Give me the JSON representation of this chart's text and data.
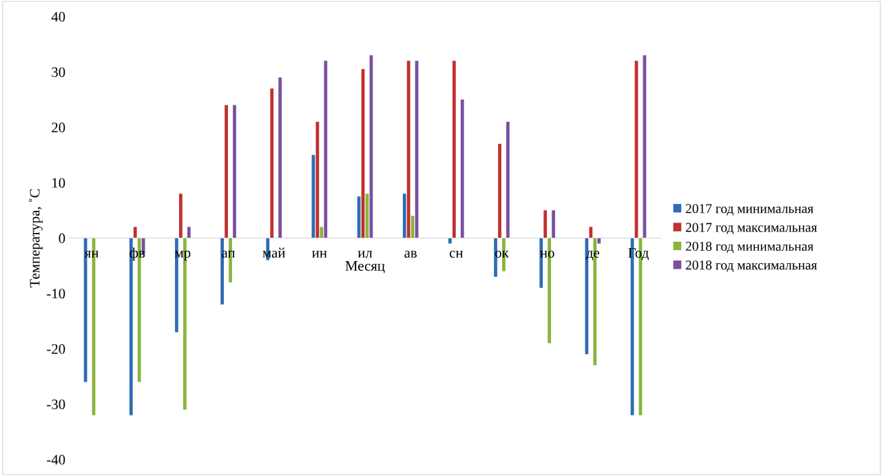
{
  "chart_data": {
    "type": "bar",
    "xlabel": "Месяц",
    "ylabel": "Температура, ˚С",
    "categories": [
      "ян",
      "фв",
      "мр",
      "ап",
      "май",
      "ин",
      "ил",
      "ав",
      "сн",
      "ок",
      "но",
      "де",
      "Год"
    ],
    "series": [
      {
        "name": "2017 год минимальная",
        "color": "#2e6db5",
        "values": [
          -26,
          -32,
          -17,
          -12,
          -4,
          15,
          7.5,
          8,
          -1,
          -7,
          -9,
          -21,
          -32
        ]
      },
      {
        "name": "2017 год максимальная",
        "color": "#c0302e",
        "values": [
          0,
          2,
          8,
          24,
          27,
          21,
          30.5,
          32,
          32,
          17,
          5,
          2,
          32
        ]
      },
      {
        "name": "2018 год минимальная",
        "color": "#8ab43c",
        "values": [
          -32,
          -26,
          -31,
          -8,
          0,
          2,
          8,
          4,
          0,
          -6,
          -19,
          -23,
          -32
        ]
      },
      {
        "name": "2018 год максимальная",
        "color": "#7a4fa0",
        "values": [
          0,
          -3,
          2,
          24,
          29,
          32,
          33,
          32,
          25,
          21,
          5,
          -1,
          33
        ]
      }
    ],
    "ylim": [
      -40,
      40
    ],
    "yticks": [
      -40,
      -30,
      -20,
      -10,
      0,
      10,
      20,
      30,
      40
    ],
    "grid": false,
    "legend": "right"
  }
}
